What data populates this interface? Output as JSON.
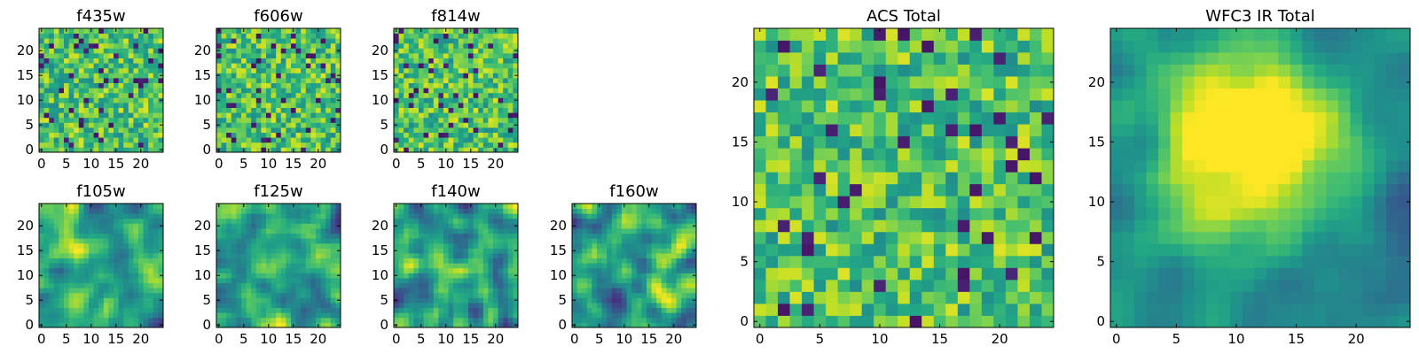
{
  "chart_data": [
    {
      "type": "heatmap",
      "title": "f435w",
      "grid_size": 25,
      "colormap": "viridis",
      "xticks": [
        0,
        5,
        10,
        15,
        20
      ],
      "yticks": [
        0,
        5,
        10,
        15,
        20
      ],
      "field": "noise",
      "seed": 11
    },
    {
      "type": "heatmap",
      "title": "f606w",
      "grid_size": 25,
      "colormap": "viridis",
      "xticks": [
        0,
        5,
        10,
        15,
        20
      ],
      "yticks": [
        0,
        5,
        10,
        15,
        20
      ],
      "field": "noise",
      "seed": 23
    },
    {
      "type": "heatmap",
      "title": "f814w",
      "grid_size": 25,
      "colormap": "viridis",
      "xticks": [
        0,
        5,
        10,
        15,
        20
      ],
      "yticks": [
        0,
        5,
        10,
        15,
        20
      ],
      "field": "noise",
      "seed": 37
    },
    {
      "type": "heatmap",
      "title": "f105w",
      "grid_size": 25,
      "colormap": "viridis",
      "xticks": [
        0,
        5,
        10,
        15,
        20
      ],
      "yticks": [
        0,
        5,
        10,
        15,
        20
      ],
      "field": "smooth",
      "seed": 41
    },
    {
      "type": "heatmap",
      "title": "f125w",
      "grid_size": 25,
      "colormap": "viridis",
      "xticks": [
        0,
        5,
        10,
        15,
        20
      ],
      "yticks": [
        0,
        5,
        10,
        15,
        20
      ],
      "field": "smooth",
      "seed": 53
    },
    {
      "type": "heatmap",
      "title": "f140w",
      "grid_size": 25,
      "colormap": "viridis",
      "xticks": [
        0,
        5,
        10,
        15,
        20
      ],
      "yticks": [
        0,
        5,
        10,
        15,
        20
      ],
      "field": "smooth",
      "seed": 67
    },
    {
      "type": "heatmap",
      "title": "f160w",
      "grid_size": 25,
      "colormap": "viridis",
      "xticks": [
        0,
        5,
        10,
        15,
        20
      ],
      "yticks": [
        0,
        5,
        10,
        15,
        20
      ],
      "field": "smooth",
      "seed": 79
    },
    {
      "type": "heatmap",
      "title": "ACS Total",
      "grid_size": 25,
      "colormap": "viridis",
      "xticks": [
        0,
        5,
        10,
        15,
        20
      ],
      "yticks": [
        0,
        5,
        10,
        15,
        20
      ],
      "field": "noise",
      "seed": 97
    },
    {
      "type": "heatmap",
      "title": "WFC3 IR Total",
      "grid_size": 25,
      "colormap": "viridis",
      "xticks": [
        0,
        5,
        10,
        15,
        20
      ],
      "yticks": [
        0,
        5,
        10,
        15,
        20
      ],
      "field": "blob",
      "seed": 113
    }
  ]
}
